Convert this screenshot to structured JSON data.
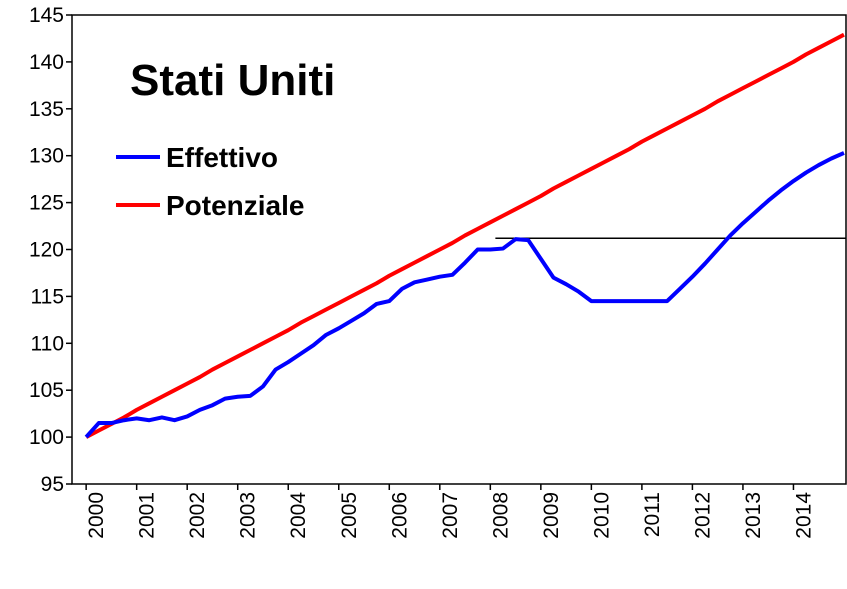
{
  "chart_data": {
    "type": "line",
    "title": "Stati Uniti",
    "x": [
      2000,
      2000.25,
      2000.5,
      2000.75,
      2001,
      2001.25,
      2001.5,
      2001.75,
      2002,
      2002.25,
      2002.5,
      2002.75,
      2003,
      2003.25,
      2003.5,
      2003.75,
      2004,
      2004.25,
      2004.5,
      2004.75,
      2005,
      2005.25,
      2005.5,
      2005.75,
      2006,
      2006.25,
      2006.5,
      2006.75,
      2007,
      2007.25,
      2007.5,
      2007.75,
      2008,
      2008.25,
      2008.5,
      2008.75,
      2009,
      2009.25,
      2009.5,
      2009.75,
      2010,
      2010.25,
      2010.5,
      2010.75,
      2011,
      2011.25,
      2011.5,
      2011.75,
      2012,
      2012.25,
      2012.5,
      2012.75,
      2013,
      2013.25,
      2013.5,
      2013.75,
      2014,
      2014.25,
      2014.5,
      2014.75,
      2015
    ],
    "series": [
      {
        "name": "Effettivo",
        "color": "#0000ff",
        "values": [
          100,
          101.5,
          101.5,
          101.8,
          102,
          101.8,
          102.1,
          101.8,
          102.2,
          102.9,
          103.4,
          104.1,
          104.3,
          104.4,
          105.4,
          107.2,
          108,
          108.9,
          109.8,
          110.9,
          111.6,
          112.4,
          113.2,
          114.2,
          114.5,
          115.8,
          116.5,
          116.8,
          117.1,
          117.3,
          118.6,
          120,
          120,
          120.1,
          121.1,
          121,
          119,
          117,
          116.3,
          115.5,
          114.5,
          114.5,
          114.5,
          114.5,
          114.5,
          114.5,
          114.5,
          115.8,
          117.1,
          118.5,
          120,
          121.5,
          122.8,
          124,
          125.2,
          126.3,
          127.3,
          128.2,
          129,
          129.7,
          130.3
        ]
      },
      {
        "name": "Potenziale",
        "color": "#ff0000",
        "values": [
          100,
          100.7,
          101.4,
          102.1,
          102.9,
          103.6,
          104.3,
          105,
          105.7,
          106.4,
          107.2,
          107.9,
          108.6,
          109.3,
          110,
          110.7,
          111.4,
          112.2,
          112.9,
          113.6,
          114.3,
          115,
          115.7,
          116.4,
          117.2,
          117.9,
          118.6,
          119.3,
          120,
          120.7,
          121.5,
          122.2,
          122.9,
          123.6,
          124.3,
          125,
          125.7,
          126.5,
          127.2,
          127.9,
          128.6,
          129.3,
          130,
          130.7,
          131.5,
          132.2,
          132.9,
          133.6,
          134.3,
          135,
          135.8,
          136.5,
          137.2,
          137.9,
          138.6,
          139.3,
          140,
          140.8,
          141.5,
          142.2,
          142.9
        ]
      }
    ],
    "reference_line": {
      "y": 121.2,
      "x_start": 2008.1,
      "color": "#000000"
    },
    "xlim": [
      1999.72,
      2015.04
    ],
    "xticks": [
      2000,
      2001,
      2002,
      2003,
      2004,
      2005,
      2006,
      2007,
      2008,
      2009,
      2010,
      2011,
      2012,
      2013,
      2014
    ],
    "ylim": [
      95,
      145
    ],
    "yticks": [
      95,
      100,
      105,
      110,
      115,
      120,
      125,
      130,
      135,
      140,
      145
    ],
    "grid": false,
    "legend": "upper left"
  }
}
